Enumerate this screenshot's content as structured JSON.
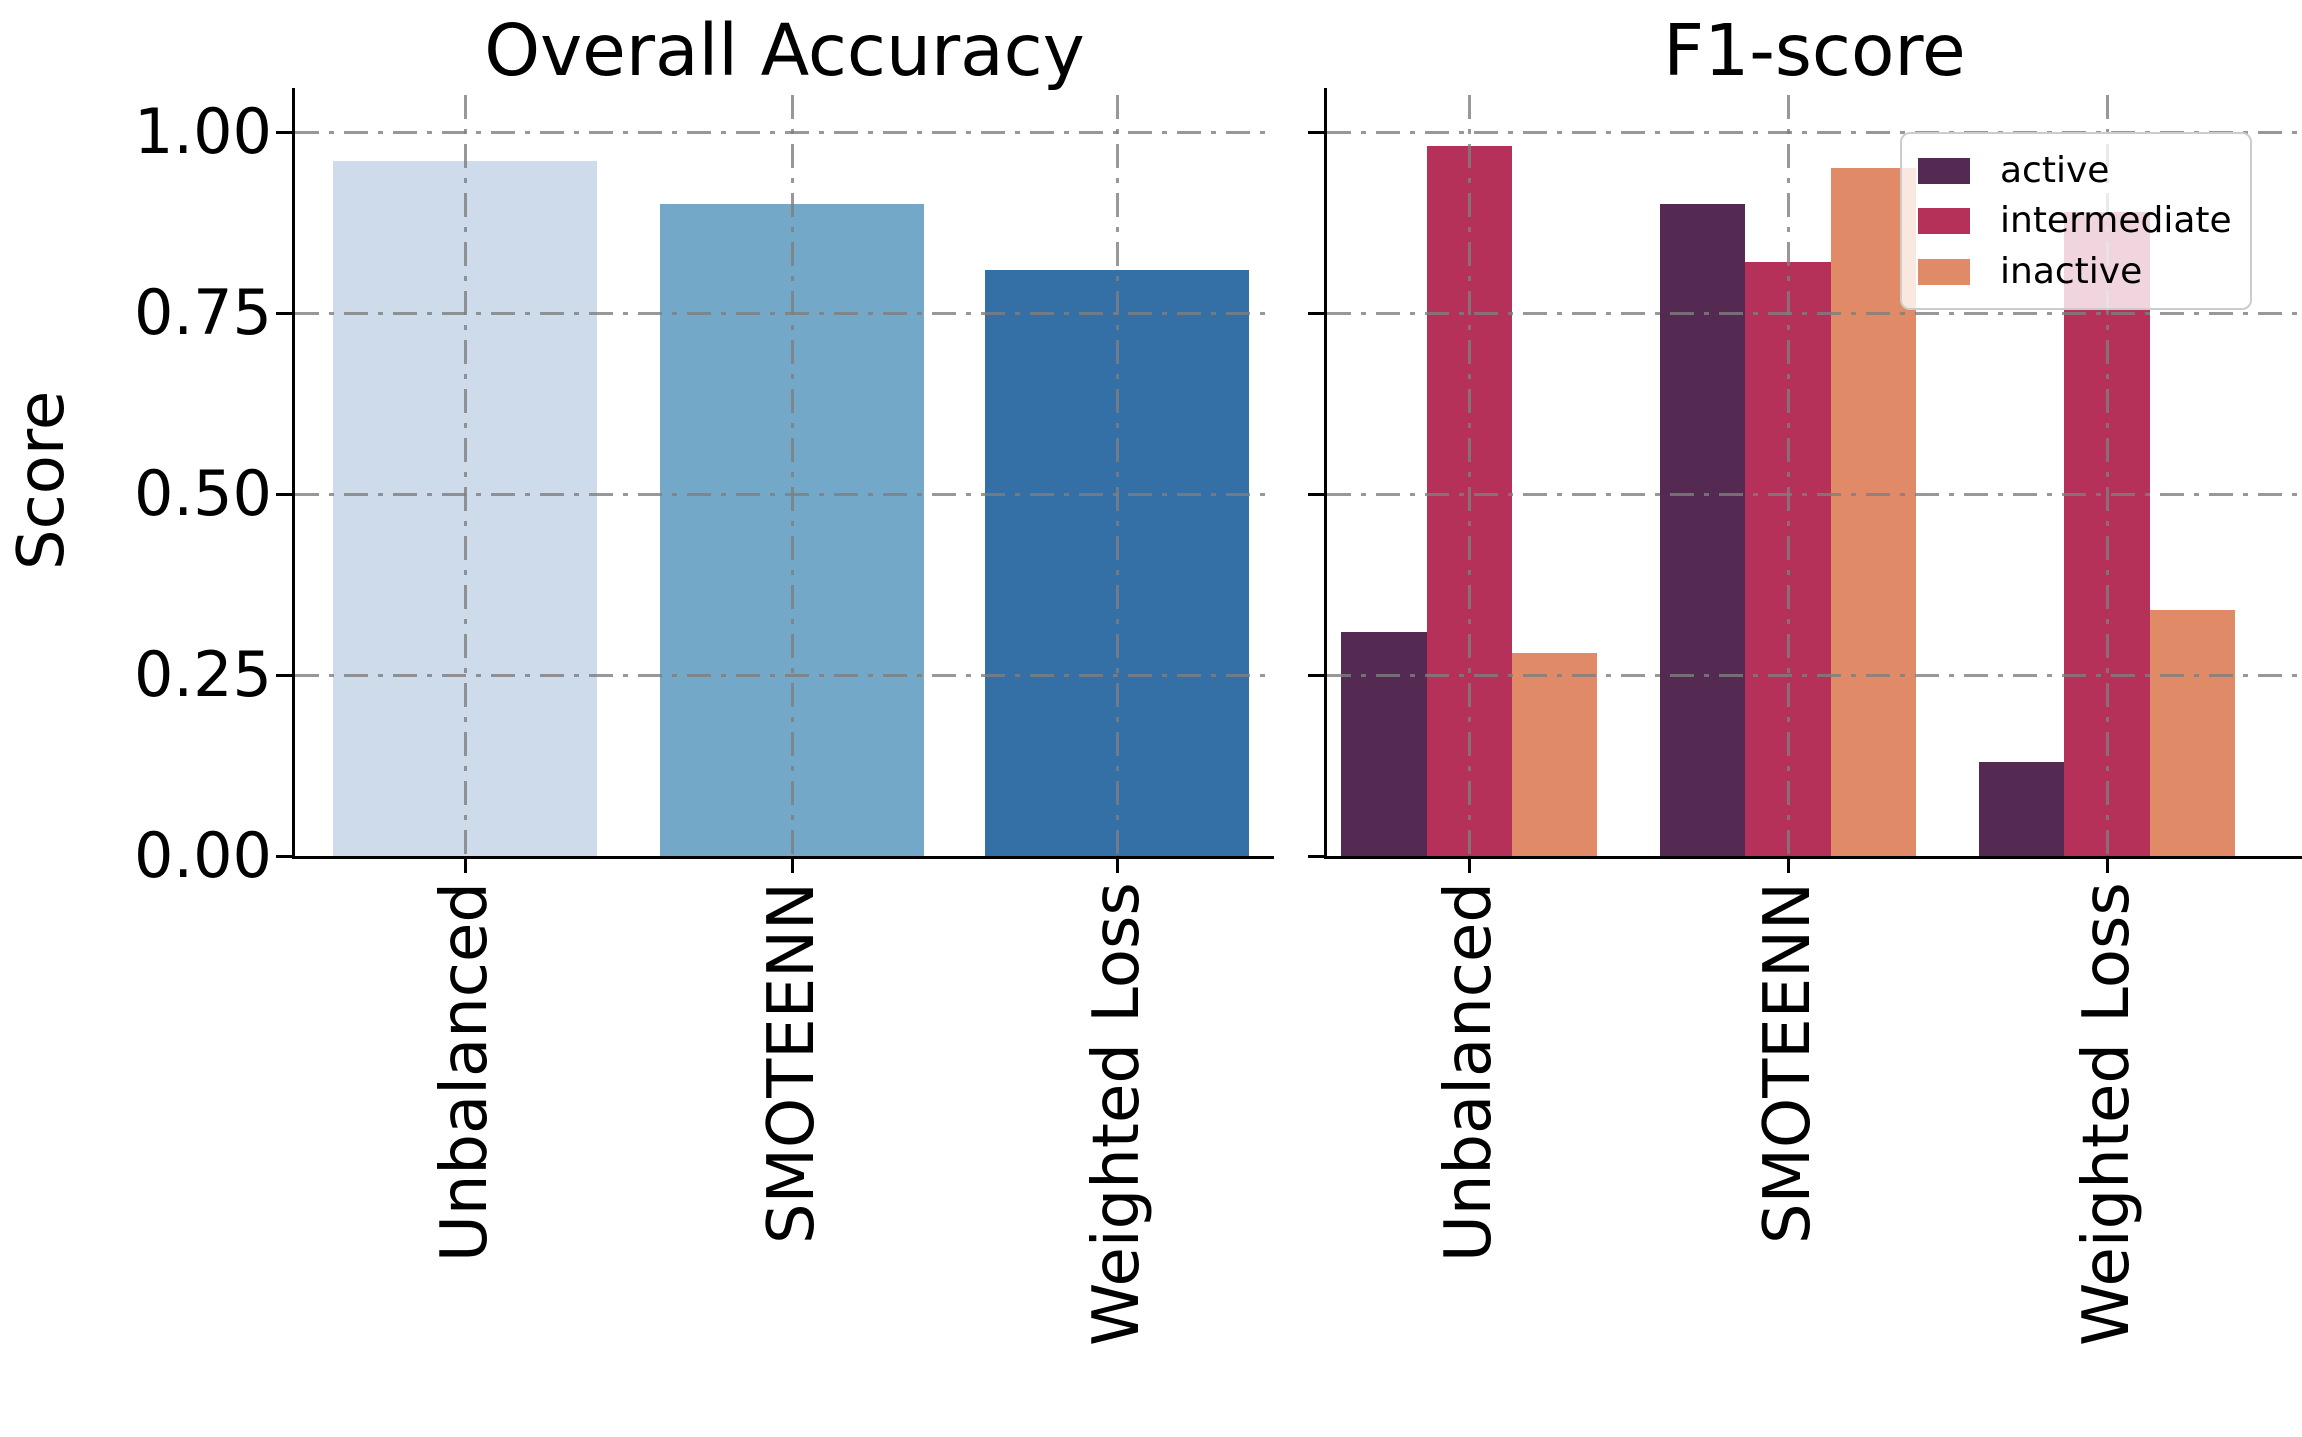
{
  "figure": {
    "background": "#ffffff",
    "grid_color": "#7e7e7e",
    "text_color": "#000000"
  },
  "chart_data": [
    {
      "type": "bar",
      "title": "Overall Accuracy",
      "ylabel": "Score",
      "xlabel": "",
      "categories": [
        "Unbalanced",
        "SMOTEENN",
        "Weighted Loss"
      ],
      "values": [
        0.96,
        0.9,
        0.81
      ],
      "bar_colors": [
        "#cddbeb",
        "#74a8c9",
        "#3470a5"
      ],
      "ylim": [
        0,
        1.05
      ],
      "yticks": [
        0,
        0.25,
        0.5,
        0.75,
        1.0
      ],
      "ytick_labels": [
        "0.00",
        "0.25",
        "0.50",
        "0.75",
        "1.00"
      ],
      "grid": "dash-dot, horizontal and vertical, drawn over bars",
      "legend_position": "none"
    },
    {
      "type": "bar",
      "title": "F1-score",
      "ylabel": "",
      "xlabel": "",
      "categories": [
        "Unbalanced",
        "SMOTEENN",
        "Weighted Loss"
      ],
      "series": [
        {
          "name": "active",
          "color": "#542a52",
          "values": [
            0.31,
            0.9,
            0.13
          ]
        },
        {
          "name": "intermediate",
          "color": "#b5315a",
          "values": [
            0.98,
            0.82,
            0.89
          ]
        },
        {
          "name": "inactive",
          "color": "#e08a67",
          "values": [
            0.28,
            0.95,
            0.34
          ]
        }
      ],
      "ylim": [
        0,
        1.05
      ],
      "yticks": [
        0,
        0.25,
        0.5,
        0.75,
        1.0
      ],
      "ytick_labels": [],
      "grid": "dash-dot, horizontal and vertical, drawn over bars",
      "legend_position": "upper right"
    }
  ]
}
